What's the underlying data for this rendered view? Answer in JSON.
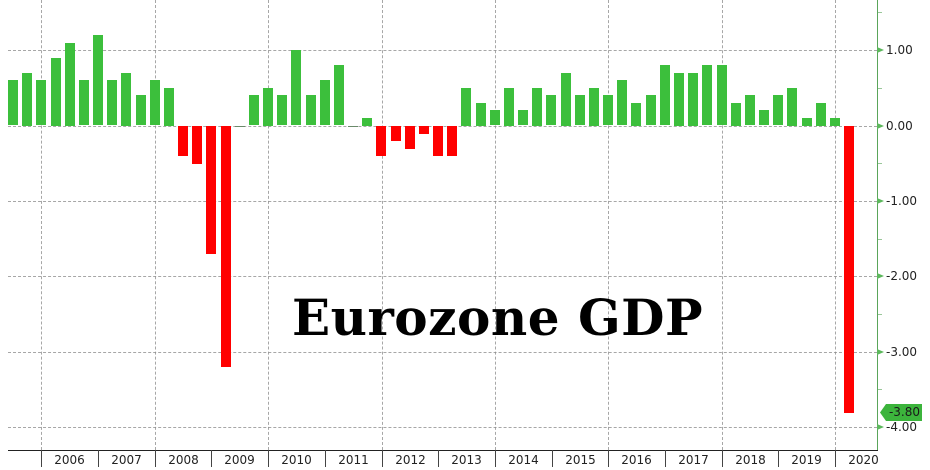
{
  "chart_data": {
    "type": "bar",
    "title": "Eurozone GDP",
    "xlabel": "",
    "ylabel": "",
    "ylim": [
      -4.3,
      1.65
    ],
    "grid": true,
    "legend": null,
    "y_ticks": [
      "1.00",
      "0.00",
      "-1.00",
      "-2.00",
      "-3.00",
      "-4.00"
    ],
    "y_tick_values": [
      1,
      0,
      -1,
      -2,
      -3,
      -4
    ],
    "x_tick_labels": [
      "2006",
      "2007",
      "2008",
      "2009",
      "2010",
      "2011",
      "2012",
      "2013",
      "2014",
      "2015",
      "2016",
      "2017",
      "2018",
      "2019",
      "2020"
    ],
    "last_value_label": "-3.80",
    "colors": {
      "positive": "#3cbf3c",
      "negative": "#ff0000",
      "axis": "#5aa55a",
      "badge": "#3cb43c"
    },
    "frequency": "quarterly",
    "values": [
      0.6,
      0.7,
      0.6,
      0.9,
      1.1,
      0.6,
      1.2,
      0.6,
      0.7,
      0.4,
      0.6,
      0.5,
      -0.4,
      -0.5,
      -1.7,
      -3.2,
      0.0,
      0.4,
      0.5,
      0.4,
      1.0,
      0.4,
      0.6,
      0.8,
      0.0,
      0.1,
      -0.4,
      -0.2,
      -0.3,
      -0.1,
      -0.4,
      -0.4,
      0.5,
      0.3,
      0.2,
      0.5,
      0.2,
      0.5,
      0.4,
      0.7,
      0.4,
      0.5,
      0.4,
      0.6,
      0.3,
      0.4,
      0.8,
      0.7,
      0.7,
      0.8,
      0.8,
      0.3,
      0.4,
      0.2,
      0.4,
      0.5,
      0.1,
      0.3,
      0.1,
      -3.8
    ]
  }
}
